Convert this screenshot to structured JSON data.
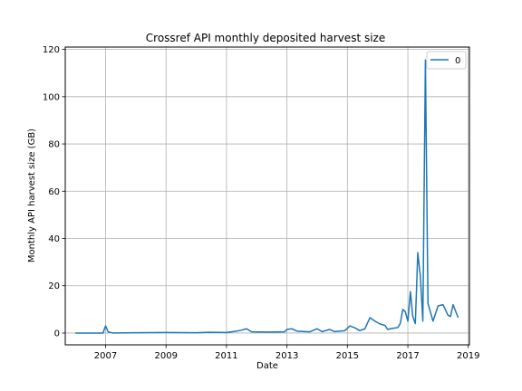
{
  "chart_data": {
    "type": "line",
    "title": "Crossref API monthly deposited harvest size",
    "xlabel": "Date",
    "ylabel": "Monthly API harvest size (GB)",
    "xlim": [
      "2005-09-01",
      "2019-01-15"
    ],
    "ylim": [
      -5,
      121
    ],
    "x_ticks": [
      "2007",
      "2009",
      "2011",
      "2013",
      "2015",
      "2017",
      "2019"
    ],
    "y_ticks": [
      "0",
      "20",
      "40",
      "60",
      "80",
      "100",
      "120"
    ],
    "grid": true,
    "legend": {
      "position": "top-right",
      "entries": [
        "0"
      ]
    },
    "series": [
      {
        "name": "0",
        "color": "#1f77b4",
        "points": [
          [
            "2006-01-01",
            0.0
          ],
          [
            "2006-06-01",
            0.0
          ],
          [
            "2006-12-01",
            0.0
          ],
          [
            "2007-01-01",
            3.0
          ],
          [
            "2007-02-01",
            0.5
          ],
          [
            "2007-04-01",
            0.0
          ],
          [
            "2008-01-01",
            0.1
          ],
          [
            "2009-01-01",
            0.2
          ],
          [
            "2010-01-01",
            0.1
          ],
          [
            "2010-06-01",
            0.3
          ],
          [
            "2011-01-01",
            0.2
          ],
          [
            "2011-05-01",
            0.8
          ],
          [
            "2011-07-01",
            1.2
          ],
          [
            "2011-09-01",
            1.8
          ],
          [
            "2011-11-01",
            0.5
          ],
          [
            "2012-06-01",
            0.4
          ],
          [
            "2012-12-01",
            0.5
          ],
          [
            "2013-01-01",
            1.5
          ],
          [
            "2013-03-01",
            1.8
          ],
          [
            "2013-05-01",
            0.8
          ],
          [
            "2013-10-01",
            0.5
          ],
          [
            "2014-01-01",
            1.8
          ],
          [
            "2014-03-01",
            0.6
          ],
          [
            "2014-06-01",
            1.5
          ],
          [
            "2014-08-01",
            0.6
          ],
          [
            "2014-12-01",
            1.0
          ],
          [
            "2015-02-01",
            3.0
          ],
          [
            "2015-04-01",
            2.2
          ],
          [
            "2015-06-01",
            1.0
          ],
          [
            "2015-08-01",
            1.8
          ],
          [
            "2015-10-01",
            6.5
          ],
          [
            "2015-12-01",
            5.0
          ],
          [
            "2016-02-01",
            3.8
          ],
          [
            "2016-04-01",
            3.2
          ],
          [
            "2016-05-01",
            1.5
          ],
          [
            "2016-07-01",
            2.0
          ],
          [
            "2016-09-01",
            2.3
          ],
          [
            "2016-10-01",
            4.0
          ],
          [
            "2016-11-01",
            10.0
          ],
          [
            "2016-12-01",
            9.0
          ],
          [
            "2017-01-01",
            5.0
          ],
          [
            "2017-02-01",
            17.5
          ],
          [
            "2017-03-01",
            7.0
          ],
          [
            "2017-04-01",
            4.0
          ],
          [
            "2017-05-01",
            34.0
          ],
          [
            "2017-06-01",
            24.0
          ],
          [
            "2017-07-01",
            5.0
          ],
          [
            "2017-08-01",
            115.5
          ],
          [
            "2017-09-01",
            12.5
          ],
          [
            "2017-11-01",
            5.0
          ],
          [
            "2018-01-01",
            11.5
          ],
          [
            "2018-03-01",
            12.0
          ],
          [
            "2018-05-01",
            7.5
          ],
          [
            "2018-06-01",
            7.0
          ],
          [
            "2018-07-01",
            12.0
          ],
          [
            "2018-09-01",
            6.5
          ]
        ]
      }
    ]
  }
}
